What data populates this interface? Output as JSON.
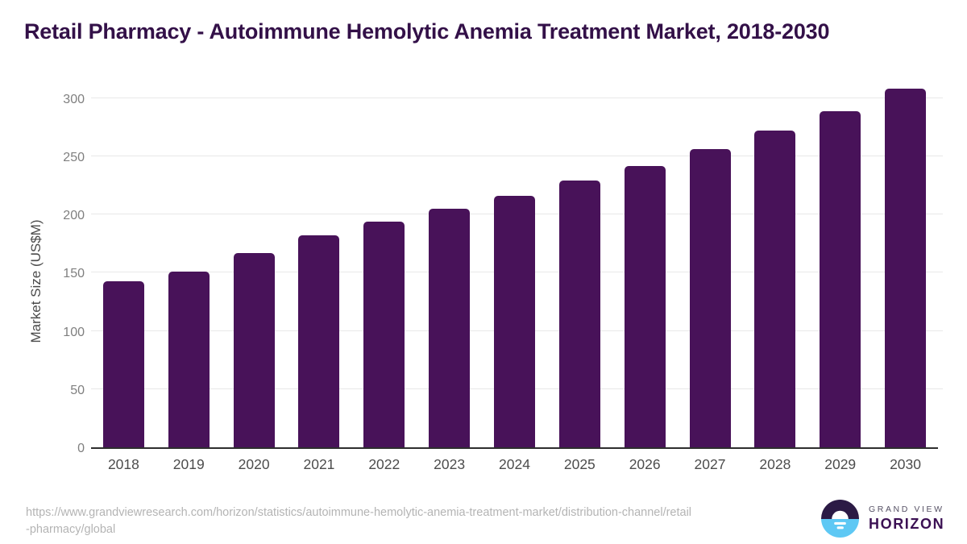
{
  "footer": {
    "source_url_lines": [
      "https://www.grandviewresearch.com/horizon/statistics/autoimmune-hemolytic-anemia-treatment-market/distribution-channel/retail",
      "-pharmacy/global"
    ],
    "logo": {
      "brand_top": "GRAND VIEW",
      "brand_bottom": "HORIZON"
    }
  },
  "colors": {
    "bar": "#481259",
    "title_text": "#331048",
    "axis_line": "#2e2e2e",
    "gridline": "#e8e8e8",
    "y_tick_text": "#7f7f7f",
    "x_tick_text": "#4c4c4c",
    "source_text": "#b4b4b4",
    "logo_dark_half": "#2b1a45",
    "logo_blue_half": "#5ec8f4",
    "logo_text": "#3b1053"
  },
  "chart_data": {
    "type": "bar",
    "title": "Retail Pharmacy - Autoimmune Hemolytic Anemia Treatment Market, 2018-2030",
    "categories": [
      "2018",
      "2019",
      "2020",
      "2021",
      "2022",
      "2023",
      "2024",
      "2025",
      "2026",
      "2027",
      "2028",
      "2029",
      "2030"
    ],
    "values": [
      143,
      151,
      167,
      182,
      194,
      205,
      216,
      229,
      242,
      256,
      272,
      289,
      308
    ],
    "xlabel": "",
    "ylabel": "Market Size (US$M)",
    "ylim": [
      0,
      320
    ],
    "yticks": [
      0,
      50,
      100,
      150,
      200,
      250,
      300
    ],
    "grid": true,
    "legend": false
  }
}
